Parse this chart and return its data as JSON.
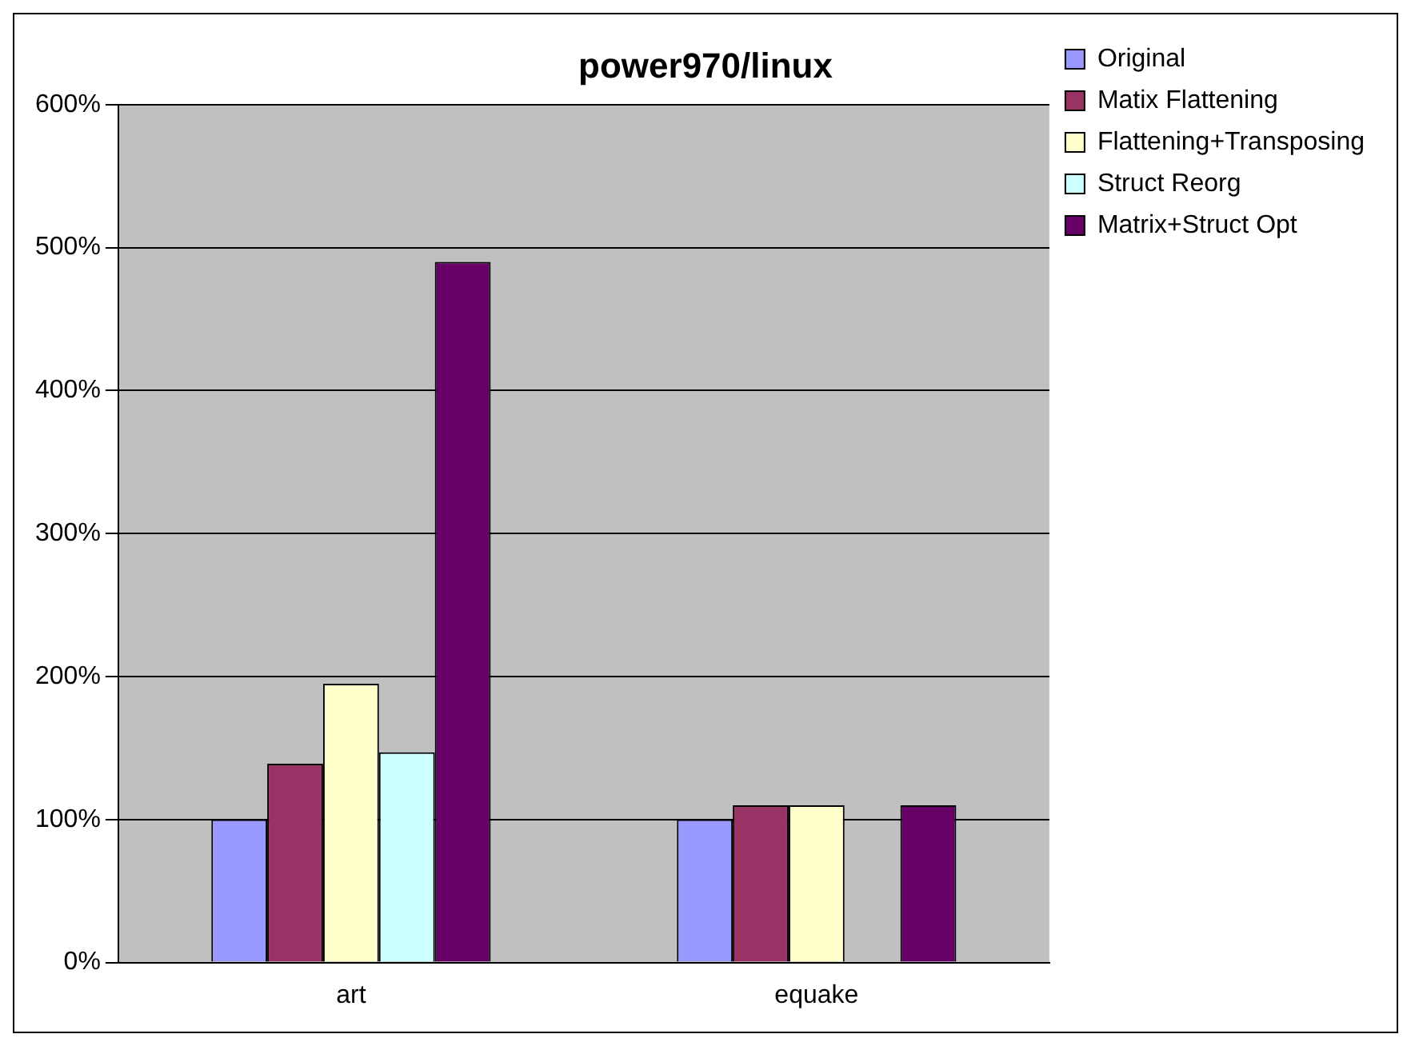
{
  "chart_data": {
    "type": "bar",
    "title": "power970/linux",
    "categories": [
      "art",
      "equake"
    ],
    "series": [
      {
        "name": "Original",
        "color": "#9999ff",
        "values": [
          100,
          100
        ]
      },
      {
        "name": "Matix Flattening",
        "color": "#993366",
        "values": [
          139,
          110
        ]
      },
      {
        "name": "Flattening+Transposing",
        "color": "#ffffcc",
        "values": [
          195,
          110
        ]
      },
      {
        "name": "Struct Reorg",
        "color": "#ccffff",
        "values": [
          147,
          null
        ]
      },
      {
        "name": "Matrix+Struct Opt",
        "color": "#660066",
        "values": [
          490,
          110
        ]
      }
    ],
    "ylim": [
      0,
      600
    ],
    "yticks": [
      {
        "value": 0,
        "label": "0%"
      },
      {
        "value": 100,
        "label": "100%"
      },
      {
        "value": 200,
        "label": "200%"
      },
      {
        "value": 300,
        "label": "300%"
      },
      {
        "value": 400,
        "label": "400%"
      },
      {
        "value": 500,
        "label": "500%"
      },
      {
        "value": 600,
        "label": "600%"
      }
    ],
    "grid": "y",
    "legend": "top right"
  }
}
